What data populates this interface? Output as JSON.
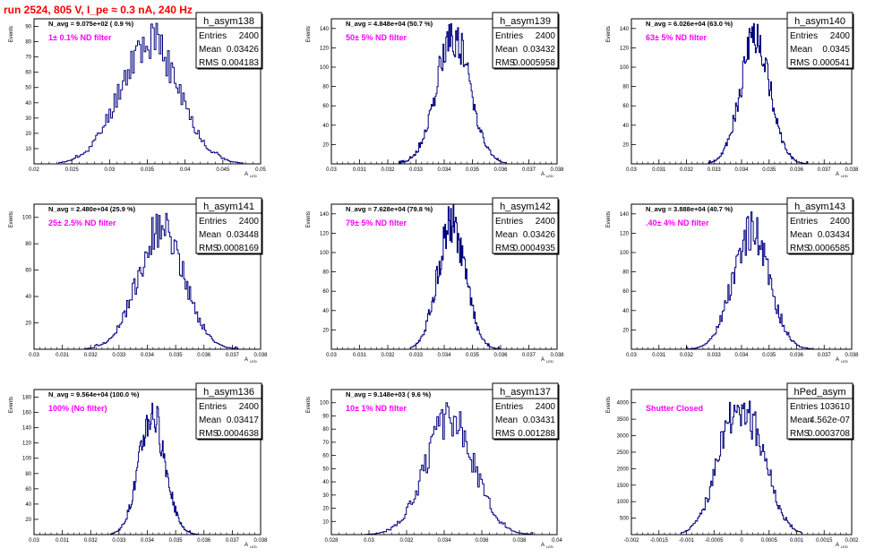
{
  "run_title": "run 2524,   805 V, I_pe ≈ 0.3 nA, 240 Hz",
  "colors": {
    "title": "#ff0000",
    "annotation": "#ff00ff",
    "histogram": "#00007f",
    "frame": "#000000"
  },
  "stats_labels": {
    "entries": "Entries",
    "mean": "Mean",
    "rms": "RMS"
  },
  "chart_data": [
    {
      "type": "histogram",
      "name": "h_asym138",
      "title": "h_asym138",
      "n_avg": "N_avg = 9.075e+02 ( 0.9 %)",
      "annotation": "1± 0.1% ND filter",
      "stats": {
        "entries": "2400",
        "mean": "0.03426",
        "rms": "0.004183"
      },
      "ylabel": "Events",
      "xlabel": "A",
      "xlabel_sub": "LED",
      "xlim": [
        0.018,
        0.05
      ],
      "ylim": [
        0,
        95
      ],
      "xticks": [
        "0.02",
        "0.025",
        "0.03",
        "0.035",
        "0.04",
        "0.045",
        "0.05"
      ],
      "yticks": [
        "10",
        "20",
        "30",
        "40",
        "50",
        "60",
        "70",
        "80",
        "90"
      ],
      "mean": 0.03426,
      "sigma": 0.004183,
      "entries": 2400,
      "peak": 92,
      "xmin": 0.0215,
      "xmax": 0.0475,
      "seed": 11,
      "bins": 110,
      "dip_center": 0,
      "dip_depth": 0
    },
    {
      "type": "histogram",
      "name": "h_asym139",
      "title": "h_asym139",
      "n_avg": "N_avg = 4.848e+04 (50.7 %)",
      "annotation": "50± 5% ND filter",
      "stats": {
        "entries": "2400",
        "mean": "0.03432",
        "rms": "0.0005958"
      },
      "ylabel": "Events",
      "xlabel": "A",
      "xlabel_sub": "LED",
      "xlim": [
        0.03,
        0.038
      ],
      "ylim": [
        0,
        150
      ],
      "xticks": [
        "0.03",
        "0.031",
        "0.032",
        "0.033",
        "0.034",
        "0.035",
        "0.036",
        "0.037",
        "0.038"
      ],
      "yticks": [
        "20",
        "40",
        "60",
        "80",
        "100",
        "120",
        "140"
      ],
      "mean": 0.03432,
      "sigma": 0.0005958,
      "entries": 2400,
      "peak": 145,
      "xmin": 0.0324,
      "xmax": 0.0362,
      "seed": 22,
      "bins": 110,
      "dip_center": 0,
      "dip_depth": 0
    },
    {
      "type": "histogram",
      "name": "h_asym140",
      "title": "h_asym140",
      "n_avg": "N_avg = 6.026e+04 (63.0 %)",
      "annotation": "63± 5% ND filter",
      "stats": {
        "entries": "2400",
        "mean": "0.0345",
        "rms": "0.000541"
      },
      "ylabel": "Events",
      "xlabel": "A",
      "xlabel_sub": "LED",
      "xlim": [
        0.03,
        0.038
      ],
      "ylim": [
        0,
        150
      ],
      "xticks": [
        "0.03",
        "0.031",
        "0.032",
        "0.033",
        "0.034",
        "0.035",
        "0.036",
        "0.037",
        "0.038"
      ],
      "yticks": [
        "20",
        "40",
        "60",
        "80",
        "100",
        "120",
        "140"
      ],
      "mean": 0.0345,
      "sigma": 0.000541,
      "entries": 2400,
      "peak": 145,
      "xmin": 0.0328,
      "xmax": 0.0364,
      "seed": 33,
      "bins": 110,
      "dip_center": 0,
      "dip_depth": 0
    },
    {
      "type": "histogram",
      "name": "h_asym141",
      "title": "h_asym141",
      "n_avg": "N_avg = 2.480e+04 (25.9 %)",
      "annotation": "25± 2.5% ND filter",
      "stats": {
        "entries": "2400",
        "mean": "0.03448",
        "rms": "0.0008169"
      },
      "ylabel": "Events",
      "xlabel": "A",
      "xlabel_sub": "LED",
      "xlim": [
        0.03,
        0.038
      ],
      "ylim": [
        0,
        110
      ],
      "xticks": [
        "0.03",
        "0.031",
        "0.032",
        "0.033",
        "0.034",
        "0.035",
        "0.036",
        "0.037",
        "0.038"
      ],
      "yticks": [
        "20",
        "40",
        "60",
        "80",
        "100"
      ],
      "mean": 0.03448,
      "sigma": 0.0008169,
      "entries": 2400,
      "peak": 103,
      "xmin": 0.0318,
      "xmax": 0.0372,
      "seed": 44,
      "bins": 110,
      "dip_center": 0,
      "dip_depth": 0
    },
    {
      "type": "histogram",
      "name": "h_asym142",
      "title": "h_asym142",
      "n_avg": "N_avg = 7.628e+04 (79.8 %)",
      "annotation": "79± 5% ND filter",
      "stats": {
        "entries": "2400",
        "mean": "0.03426",
        "rms": "0.0004935"
      },
      "ylabel": "Events",
      "xlabel": "A",
      "xlabel_sub": "LED",
      "xlim": [
        0.03,
        0.038
      ],
      "ylim": [
        0,
        150
      ],
      "xticks": [
        "0.03",
        "0.031",
        "0.032",
        "0.033",
        "0.034",
        "0.035",
        "0.036",
        "0.037",
        "0.038"
      ],
      "yticks": [
        "20",
        "40",
        "60",
        "80",
        "100",
        "120",
        "140"
      ],
      "mean": 0.03426,
      "sigma": 0.0004935,
      "entries": 2400,
      "peak": 150,
      "xmin": 0.0328,
      "xmax": 0.036,
      "seed": 55,
      "bins": 110,
      "dip_center": 0,
      "dip_depth": 0
    },
    {
      "type": "histogram",
      "name": "h_asym143",
      "title": "h_asym143",
      "n_avg": "N_avg = 3.888e+04 (40.7 %)",
      "annotation": ".40± 4% ND filter",
      "stats": {
        "entries": "2400",
        "mean": "0.03434",
        "rms": "0.0006585"
      },
      "ylabel": "Events",
      "xlabel": "A",
      "xlabel_sub": "LED",
      "xlim": [
        0.03,
        0.038
      ],
      "ylim": [
        0,
        150
      ],
      "xticks": [
        "0.03",
        "0.031",
        "0.032",
        "0.033",
        "0.034",
        "0.035",
        "0.036",
        "0.037",
        "0.038"
      ],
      "yticks": [
        "20",
        "40",
        "60",
        "80",
        "100",
        "120",
        "140"
      ],
      "mean": 0.03434,
      "sigma": 0.0006585,
      "entries": 2400,
      "peak": 142,
      "xmin": 0.032,
      "xmax": 0.0366,
      "seed": 66,
      "bins": 110,
      "dip_center": 0,
      "dip_depth": 0
    },
    {
      "type": "histogram",
      "name": "h_asym136",
      "title": "h_asym136",
      "n_avg": "N_avg = 9.564e+04 (100.0 %)",
      "annotation": "100% (No filter)",
      "stats": {
        "entries": "2400",
        "mean": "0.03417",
        "rms": "0.0004638"
      },
      "ylabel": "Events",
      "xlabel": "A",
      "xlabel_sub": "LED",
      "xlim": [
        0.03,
        0.038
      ],
      "ylim": [
        0,
        190
      ],
      "xticks": [
        "0.03",
        "0.031",
        "0.032",
        "0.033",
        "0.034",
        "0.035",
        "0.036",
        "0.037",
        "0.038"
      ],
      "yticks": [
        "20",
        "40",
        "60",
        "80",
        "100",
        "120",
        "140",
        "160",
        "180"
      ],
      "mean": 0.03417,
      "sigma": 0.0004638,
      "entries": 2400,
      "peak": 172,
      "xmin": 0.0327,
      "xmax": 0.0358,
      "seed": 77,
      "bins": 110,
      "dip_center": 0,
      "dip_depth": 0
    },
    {
      "type": "histogram",
      "name": "h_asym137",
      "title": "h_asym137",
      "n_avg": "N_avg = 9.148e+03 ( 9.6 %)",
      "annotation": "10± 1% ND filter",
      "stats": {
        "entries": "2400",
        "mean": "0.03431",
        "rms": "0.001288"
      },
      "ylabel": "Events",
      "xlabel": "A",
      "xlabel_sub": "LED",
      "xlim": [
        0.028,
        0.04
      ],
      "ylim": [
        0,
        110
      ],
      "xticks": [
        "0.028",
        "0.03",
        "0.032",
        "0.034",
        "0.036",
        "0.038",
        "0.04"
      ],
      "yticks": [
        "10",
        "20",
        "30",
        "40",
        "50",
        "60",
        "70",
        "80",
        "90",
        "100"
      ],
      "mean": 0.03431,
      "sigma": 0.001288,
      "entries": 2400,
      "peak": 100,
      "xmin": 0.0298,
      "xmax": 0.0387,
      "seed": 88,
      "bins": 110,
      "dip_center": 0,
      "dip_depth": 0
    },
    {
      "type": "histogram",
      "name": "hPed_asym",
      "title": "hPed_asym",
      "n_avg": "",
      "annotation": "Shutter Closed",
      "stats": {
        "entries": "103610",
        "mean": "4.562e-07",
        "rms": "0.0003708"
      },
      "ylabel": "Events",
      "xlabel": "A",
      "xlabel_sub": "LED",
      "xlim": [
        -0.002,
        0.002
      ],
      "ylim": [
        0,
        4400
      ],
      "xticks": [
        "-0.002",
        "-0.0015",
        "-0.001",
        "-0.0005",
        "0",
        "0.0005",
        "0.001",
        "0.0015",
        "0.002"
      ],
      "yticks": [
        "500",
        "1000",
        "1500",
        "2000",
        "2500",
        "3000",
        "3500",
        "4000"
      ],
      "mean": 0.0,
      "sigma": 0.00037,
      "entries": 103610,
      "peak": 4050,
      "xmin": -0.0011,
      "xmax": 0.0011,
      "seed": 99,
      "bins": 110,
      "dip_center": 2e-05,
      "dip_depth": 0.2
    }
  ]
}
